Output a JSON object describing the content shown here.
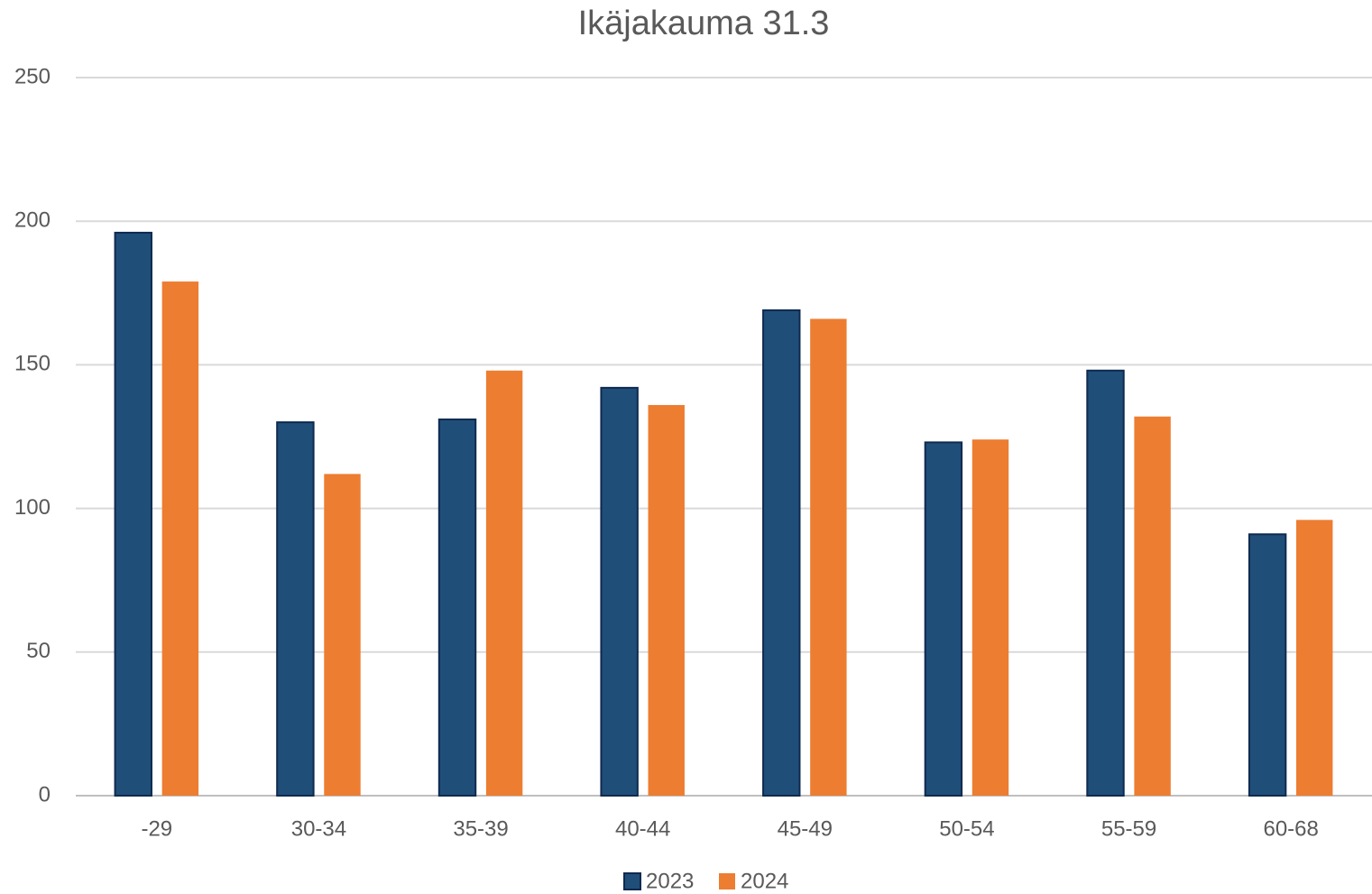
{
  "chart_data": {
    "type": "bar",
    "title": "Ikäjakauma 31.3",
    "categories": [
      "-29",
      "30-34",
      "35-39",
      "40-44",
      "45-49",
      "50-54",
      "55-59",
      "60-68"
    ],
    "series": [
      {
        "name": "2023",
        "color": "#1f4e79",
        "values": [
          196,
          130,
          131,
          142,
          169,
          123,
          148,
          91
        ]
      },
      {
        "name": "2024",
        "color": "#ed7d31",
        "values": [
          179,
          112,
          148,
          136,
          166,
          124,
          132,
          96
        ]
      }
    ],
    "ylim": [
      0,
      250
    ],
    "yticks": [
      0,
      50,
      100,
      150,
      200,
      250
    ],
    "grid": true,
    "legend": "bottom"
  }
}
